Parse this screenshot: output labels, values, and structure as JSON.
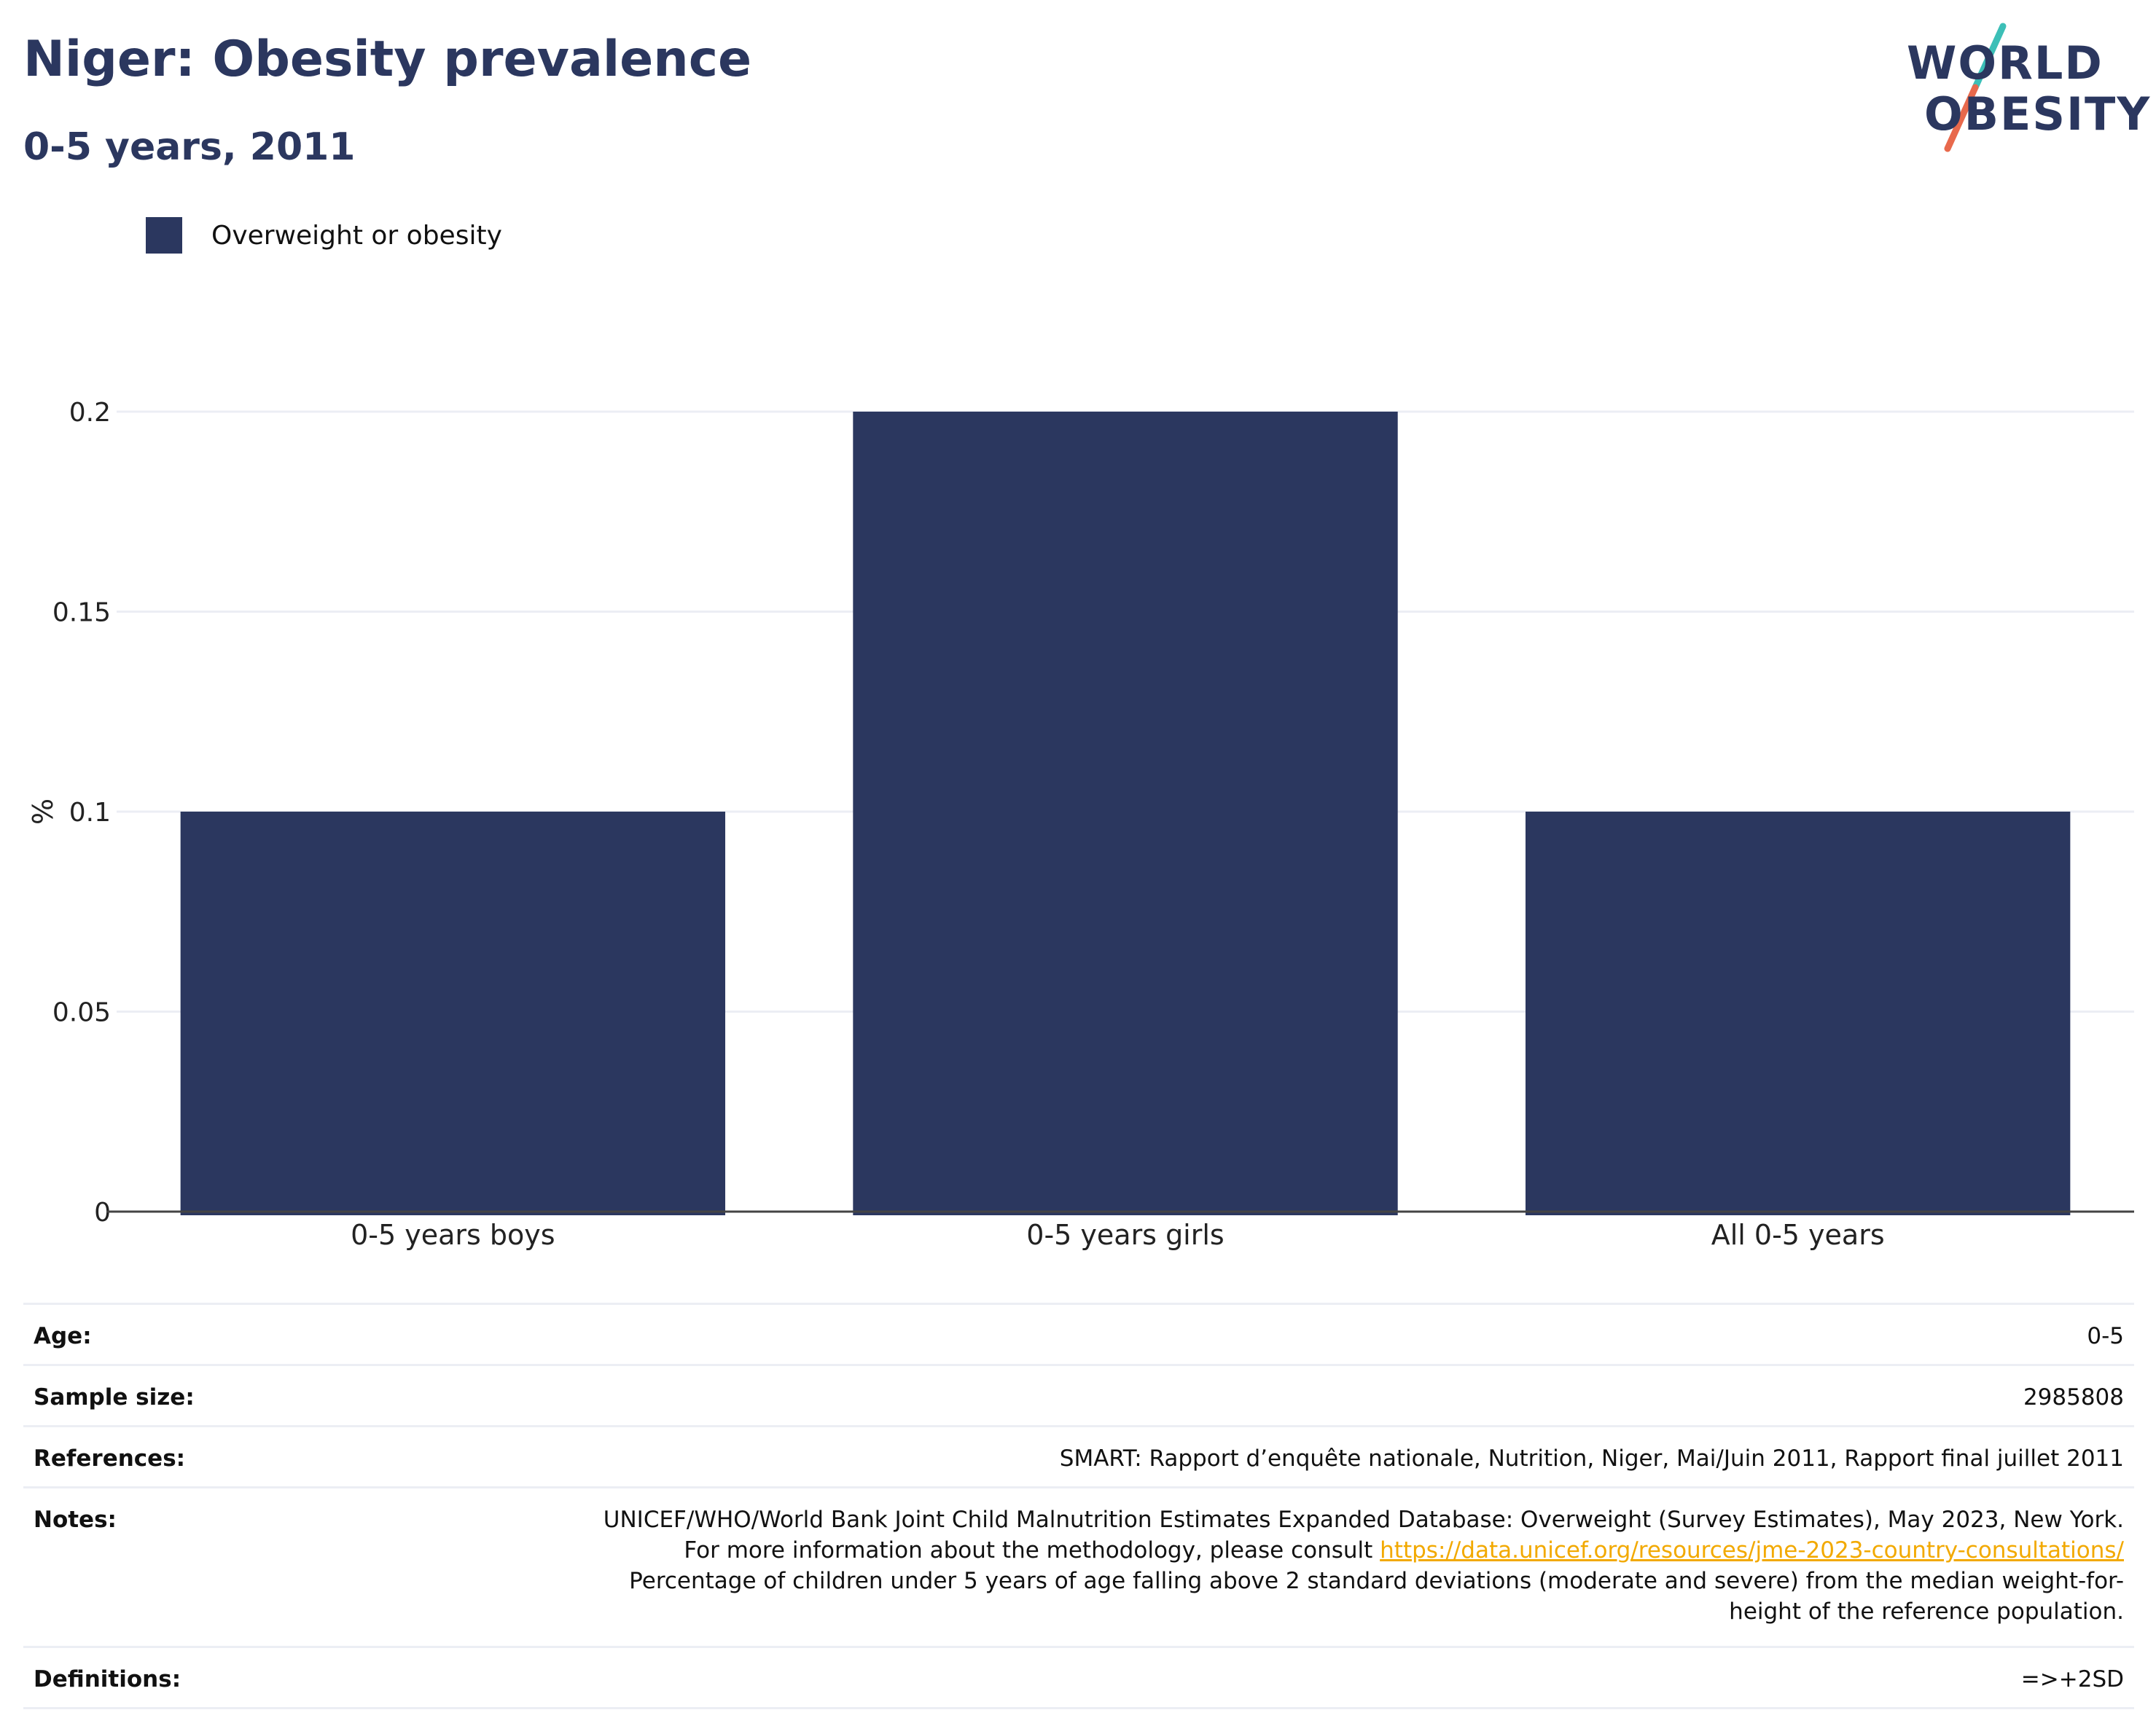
{
  "header": {
    "title": "Niger: Obesity prevalence",
    "subtitle": "0-5 years, 2011"
  },
  "logo": {
    "line1": "WORLD",
    "line2": "OBESITY",
    "slash_colors": [
      "#3cbfb7",
      "#e8694c"
    ]
  },
  "colors": {
    "bar": "#2b375f",
    "title": "#2b375f",
    "gridline": "#eceef4",
    "link": "#f2a900"
  },
  "chart_data": {
    "type": "bar",
    "title": "Niger: Obesity prevalence",
    "subtitle": "0-5 years, 2011",
    "categories": [
      "0-5 years boys",
      "0-5 years girls",
      "All 0-5 years"
    ],
    "series": [
      {
        "name": "Overweight or obesity",
        "values": [
          0.1,
          0.2,
          0.1
        ]
      }
    ],
    "xlabel": "",
    "ylabel": "%",
    "ylim": [
      0,
      0.2
    ],
    "yticks": [
      0,
      0.05,
      0.1,
      0.15,
      0.2
    ],
    "ytick_labels": [
      "0",
      "0.05",
      "0.1",
      "0.15",
      "0.2"
    ],
    "grid": true,
    "legend_position": "top-left"
  },
  "info": {
    "age_label": "Age:",
    "age_value": "0-5",
    "sample_label": "Sample size:",
    "sample_value": "2985808",
    "references_label": "References:",
    "references_value": "SMART: Rapport d’enquête nationale, Nutrition, Niger, Mai/Juin 2011, Rapport final juillet 2011",
    "notes_label": "Notes:",
    "notes_text1": "UNICEF/WHO/World Bank Joint Child Malnutrition Estimates Expanded Database: Overweight (Survey Estimates), May 2023, New York. For more information about the methodology, please consult ",
    "notes_link": "https://data.unicef.org/resources/jme-2023-country-consultations/",
    "notes_text2": "Percentage of children under 5 years of age falling above 2 standard deviations (moderate and severe) from the median weight-for-height of the reference population.",
    "definitions_label": "Definitions:",
    "definitions_value": "=>+2SD"
  }
}
